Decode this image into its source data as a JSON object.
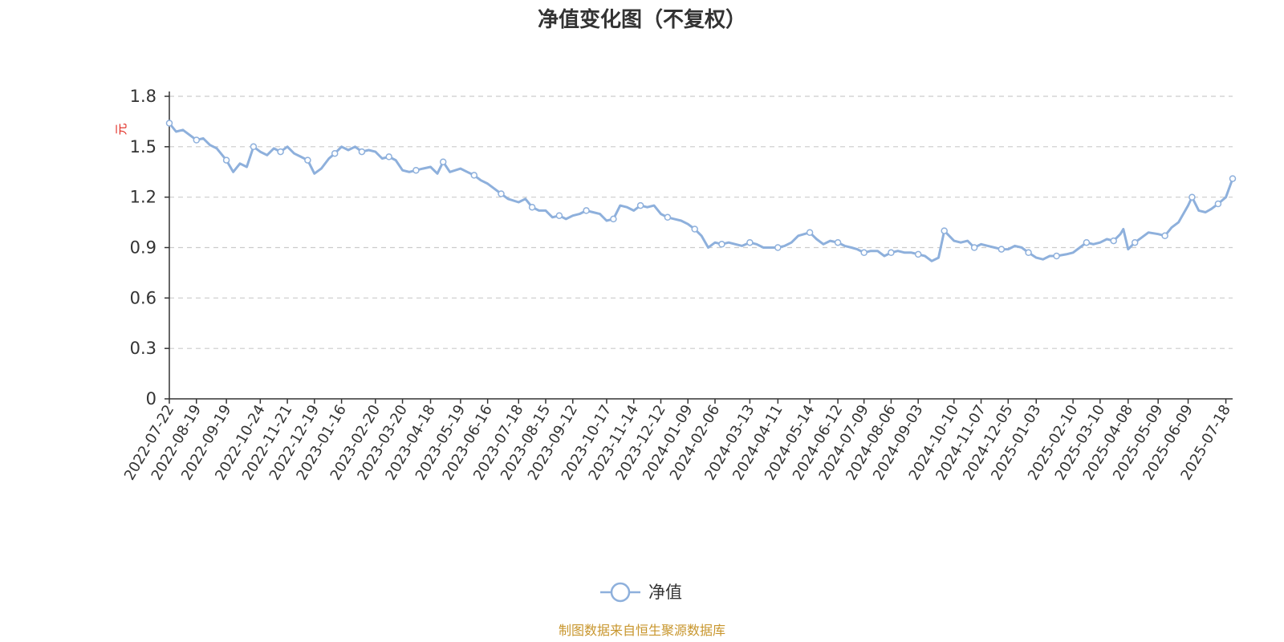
{
  "chart_data": {
    "type": "line",
    "title": "净值变化图（不复权）",
    "ylabel": "元",
    "ylim": [
      0,
      1.8
    ],
    "yticks": [
      "0",
      "0.3",
      "0.6",
      "0.9",
      "1.2",
      "1.5",
      "1.8"
    ],
    "xlim": [
      "2022-07-22",
      "2025-07-25"
    ],
    "grid": true,
    "legend_position": "bottom-center",
    "x_tick_labels": [
      "2022-07-22",
      "2022-08-19",
      "2022-09-19",
      "2022-10-24",
      "2022-11-21",
      "2022-12-19",
      "2023-01-16",
      "2023-02-20",
      "2023-03-20",
      "2023-04-18",
      "2023-05-19",
      "2023-06-16",
      "2023-07-18",
      "2023-08-15",
      "2023-09-12",
      "2023-10-17",
      "2023-11-14",
      "2023-12-12",
      "2024-01-09",
      "2024-02-06",
      "2024-03-13",
      "2024-04-11",
      "2024-05-14",
      "2024-06-12",
      "2024-07-09",
      "2024-08-06",
      "2024-09-03",
      "2024-10-10",
      "2024-11-07",
      "2024-12-05",
      "2025-01-03",
      "2025-02-10",
      "2025-03-10",
      "2025-04-08",
      "2025-05-09",
      "2025-06-09",
      "2025-07-18"
    ],
    "series": [
      {
        "name": "净值",
        "color": "#8eb0dc",
        "points": [
          [
            "2022-07-22",
            1.64
          ],
          [
            "2022-07-29",
            1.59
          ],
          [
            "2022-08-05",
            1.6
          ],
          [
            "2022-08-12",
            1.57
          ],
          [
            "2022-08-19",
            1.54
          ],
          [
            "2022-08-26",
            1.55
          ],
          [
            "2022-09-02",
            1.51
          ],
          [
            "2022-09-09",
            1.49
          ],
          [
            "2022-09-19",
            1.42
          ],
          [
            "2022-09-26",
            1.35
          ],
          [
            "2022-10-03",
            1.4
          ],
          [
            "2022-10-10",
            1.38
          ],
          [
            "2022-10-17",
            1.5
          ],
          [
            "2022-10-24",
            1.47
          ],
          [
            "2022-10-31",
            1.45
          ],
          [
            "2022-11-07",
            1.49
          ],
          [
            "2022-11-14",
            1.47
          ],
          [
            "2022-11-21",
            1.5
          ],
          [
            "2022-11-28",
            1.46
          ],
          [
            "2022-12-05",
            1.44
          ],
          [
            "2022-12-12",
            1.42
          ],
          [
            "2022-12-19",
            1.34
          ],
          [
            "2022-12-26",
            1.37
          ],
          [
            "2023-01-03",
            1.43
          ],
          [
            "2023-01-09",
            1.46
          ],
          [
            "2023-01-16",
            1.5
          ],
          [
            "2023-01-23",
            1.48
          ],
          [
            "2023-01-30",
            1.5
          ],
          [
            "2023-02-06",
            1.47
          ],
          [
            "2023-02-13",
            1.48
          ],
          [
            "2023-02-20",
            1.47
          ],
          [
            "2023-02-27",
            1.43
          ],
          [
            "2023-03-06",
            1.44
          ],
          [
            "2023-03-13",
            1.42
          ],
          [
            "2023-03-20",
            1.36
          ],
          [
            "2023-03-27",
            1.35
          ],
          [
            "2023-04-03",
            1.36
          ],
          [
            "2023-04-10",
            1.37
          ],
          [
            "2023-04-18",
            1.38
          ],
          [
            "2023-04-25",
            1.34
          ],
          [
            "2023-05-01",
            1.41
          ],
          [
            "2023-05-08",
            1.35
          ],
          [
            "2023-05-19",
            1.37
          ],
          [
            "2023-05-26",
            1.35
          ],
          [
            "2023-06-02",
            1.33
          ],
          [
            "2023-06-09",
            1.3
          ],
          [
            "2023-06-16",
            1.28
          ],
          [
            "2023-06-23",
            1.25
          ],
          [
            "2023-06-30",
            1.22
          ],
          [
            "2023-07-07",
            1.19
          ],
          [
            "2023-07-18",
            1.17
          ],
          [
            "2023-07-25",
            1.19
          ],
          [
            "2023-08-01",
            1.14
          ],
          [
            "2023-08-08",
            1.12
          ],
          [
            "2023-08-15",
            1.12
          ],
          [
            "2023-08-22",
            1.08
          ],
          [
            "2023-08-29",
            1.09
          ],
          [
            "2023-09-05",
            1.07
          ],
          [
            "2023-09-12",
            1.09
          ],
          [
            "2023-09-19",
            1.1
          ],
          [
            "2023-09-26",
            1.12
          ],
          [
            "2023-10-03",
            1.11
          ],
          [
            "2023-10-10",
            1.1
          ],
          [
            "2023-10-17",
            1.06
          ],
          [
            "2023-10-24",
            1.07
          ],
          [
            "2023-10-31",
            1.15
          ],
          [
            "2023-11-07",
            1.14
          ],
          [
            "2023-11-14",
            1.12
          ],
          [
            "2023-11-21",
            1.15
          ],
          [
            "2023-11-28",
            1.14
          ],
          [
            "2023-12-05",
            1.15
          ],
          [
            "2023-12-12",
            1.1
          ],
          [
            "2023-12-19",
            1.08
          ],
          [
            "2023-12-26",
            1.07
          ],
          [
            "2024-01-02",
            1.06
          ],
          [
            "2024-01-09",
            1.04
          ],
          [
            "2024-01-16",
            1.01
          ],
          [
            "2024-01-23",
            0.97
          ],
          [
            "2024-01-30",
            0.9
          ],
          [
            "2024-02-06",
            0.93
          ],
          [
            "2024-02-13",
            0.92
          ],
          [
            "2024-02-20",
            0.93
          ],
          [
            "2024-02-27",
            0.92
          ],
          [
            "2024-03-05",
            0.91
          ],
          [
            "2024-03-13",
            0.93
          ],
          [
            "2024-03-20",
            0.92
          ],
          [
            "2024-03-27",
            0.9
          ],
          [
            "2024-04-03",
            0.9
          ],
          [
            "2024-04-11",
            0.9
          ],
          [
            "2024-04-18",
            0.91
          ],
          [
            "2024-04-25",
            0.93
          ],
          [
            "2024-05-02",
            0.97
          ],
          [
            "2024-05-14",
            0.99
          ],
          [
            "2024-05-21",
            0.95
          ],
          [
            "2024-05-28",
            0.92
          ],
          [
            "2024-06-04",
            0.94
          ],
          [
            "2024-06-12",
            0.93
          ],
          [
            "2024-06-19",
            0.91
          ],
          [
            "2024-06-26",
            0.9
          ],
          [
            "2024-07-02",
            0.89
          ],
          [
            "2024-07-09",
            0.87
          ],
          [
            "2024-07-16",
            0.88
          ],
          [
            "2024-07-23",
            0.88
          ],
          [
            "2024-07-30",
            0.85
          ],
          [
            "2024-08-06",
            0.87
          ],
          [
            "2024-08-13",
            0.88
          ],
          [
            "2024-08-20",
            0.87
          ],
          [
            "2024-08-27",
            0.87
          ],
          [
            "2024-09-03",
            0.86
          ],
          [
            "2024-09-10",
            0.85
          ],
          [
            "2024-09-17",
            0.82
          ],
          [
            "2024-09-24",
            0.84
          ],
          [
            "2024-09-30",
            1.0
          ],
          [
            "2024-10-10",
            0.94
          ],
          [
            "2024-10-17",
            0.93
          ],
          [
            "2024-10-24",
            0.94
          ],
          [
            "2024-10-31",
            0.9
          ],
          [
            "2024-11-07",
            0.92
          ],
          [
            "2024-11-14",
            0.91
          ],
          [
            "2024-11-21",
            0.9
          ],
          [
            "2024-11-28",
            0.89
          ],
          [
            "2024-12-05",
            0.89
          ],
          [
            "2024-12-12",
            0.91
          ],
          [
            "2024-12-19",
            0.9
          ],
          [
            "2024-12-26",
            0.87
          ],
          [
            "2025-01-03",
            0.84
          ],
          [
            "2025-01-10",
            0.83
          ],
          [
            "2025-01-17",
            0.85
          ],
          [
            "2025-01-24",
            0.85
          ],
          [
            "2025-02-03",
            0.86
          ],
          [
            "2025-02-10",
            0.87
          ],
          [
            "2025-02-17",
            0.9
          ],
          [
            "2025-02-24",
            0.93
          ],
          [
            "2025-03-03",
            0.92
          ],
          [
            "2025-03-10",
            0.93
          ],
          [
            "2025-03-17",
            0.95
          ],
          [
            "2025-03-24",
            0.94
          ],
          [
            "2025-03-31",
            0.98
          ],
          [
            "2025-04-03",
            1.01
          ],
          [
            "2025-04-08",
            0.89
          ],
          [
            "2025-04-15",
            0.93
          ],
          [
            "2025-04-22",
            0.96
          ],
          [
            "2025-04-29",
            0.99
          ],
          [
            "2025-05-09",
            0.98
          ],
          [
            "2025-05-16",
            0.97
          ],
          [
            "2025-05-23",
            1.02
          ],
          [
            "2025-05-30",
            1.05
          ],
          [
            "2025-06-09",
            1.15
          ],
          [
            "2025-06-13",
            1.2
          ],
          [
            "2025-06-20",
            1.12
          ],
          [
            "2025-06-27",
            1.11
          ],
          [
            "2025-07-03",
            1.13
          ],
          [
            "2025-07-10",
            1.16
          ],
          [
            "2025-07-18",
            1.2
          ],
          [
            "2025-07-25",
            1.31
          ]
        ]
      }
    ]
  },
  "footer": {
    "source": "制图数据来自恒生聚源数据库"
  }
}
